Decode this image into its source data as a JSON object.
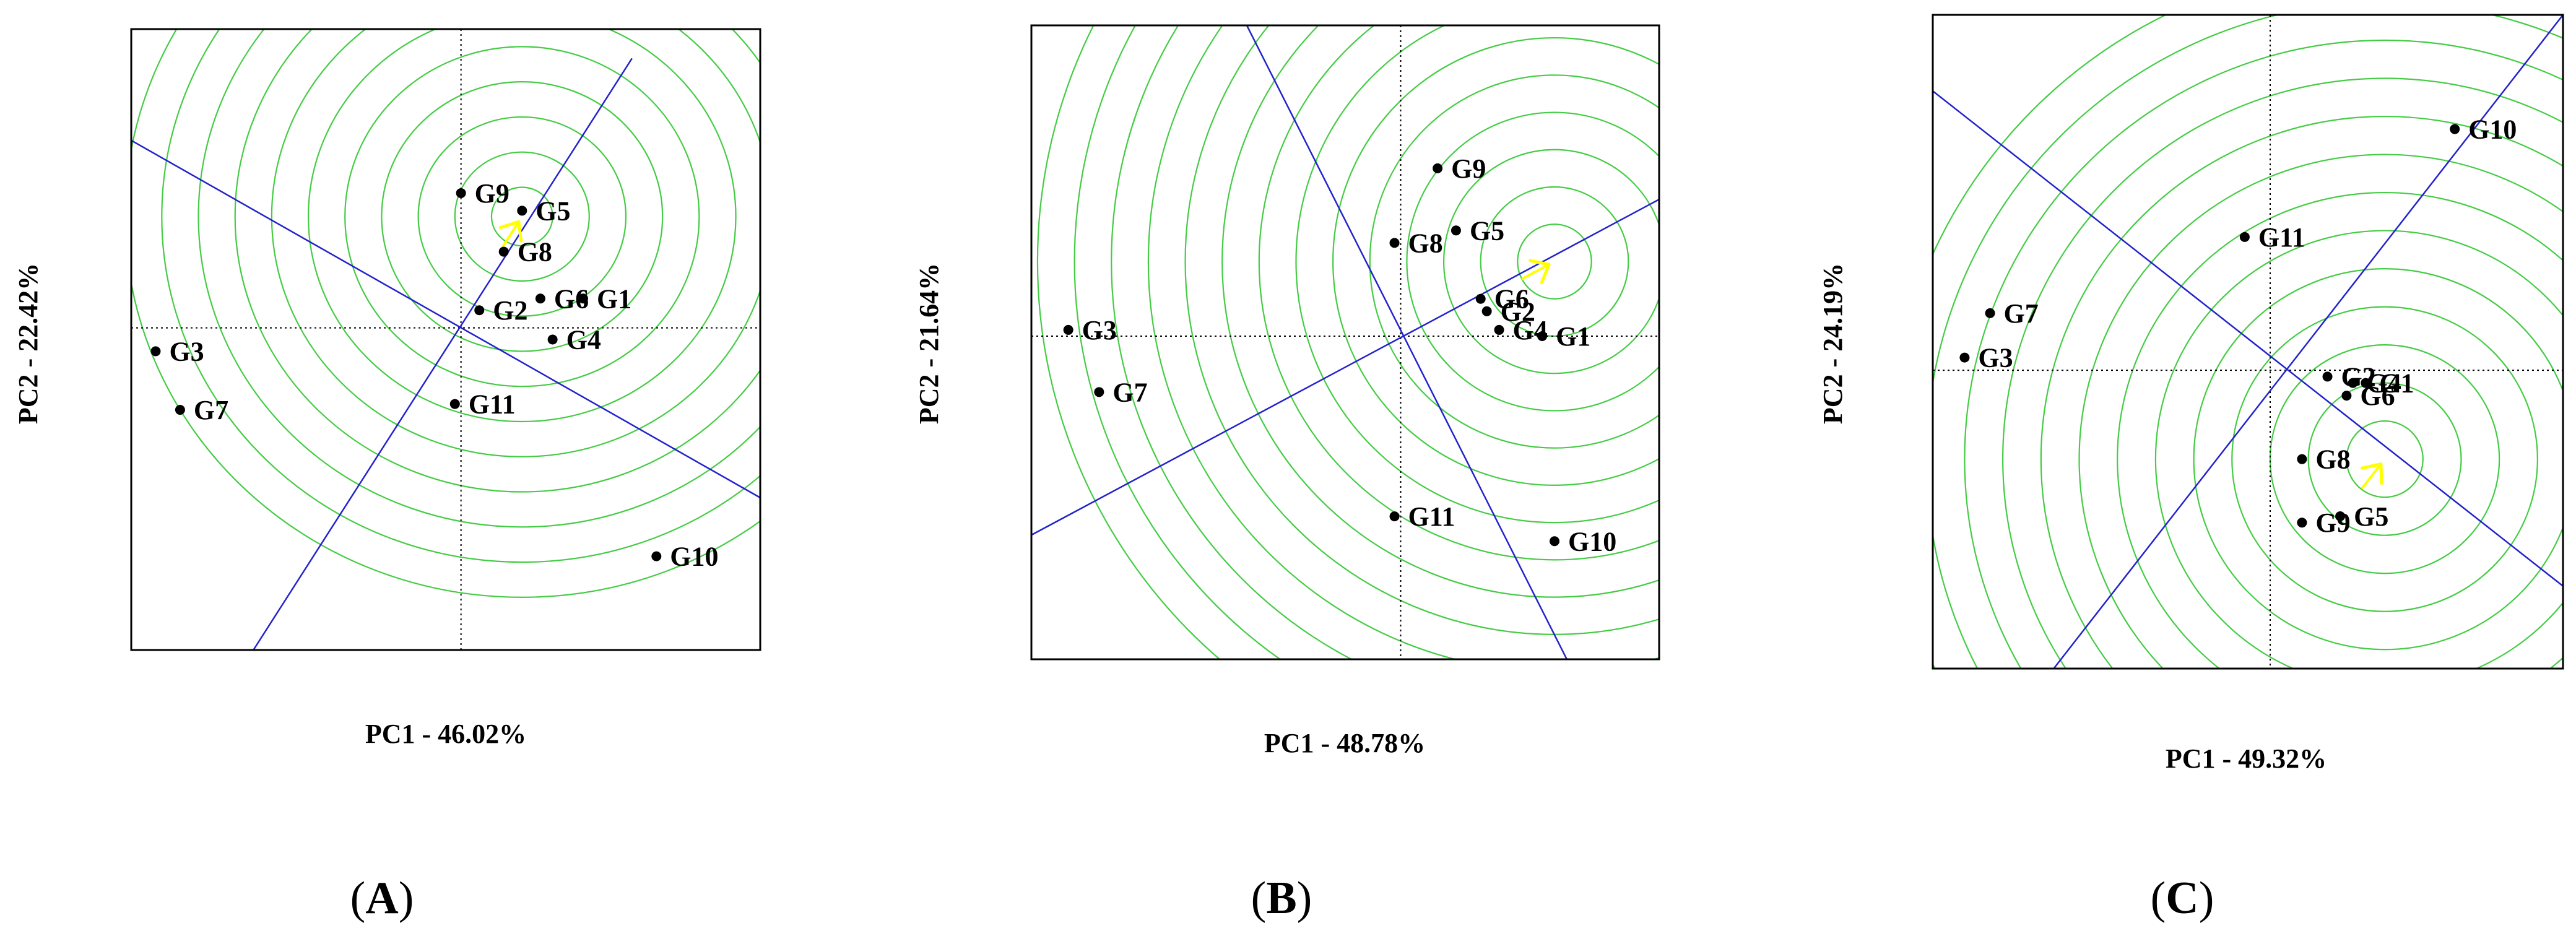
{
  "figure": {
    "panels": [
      {
        "id": "A",
        "label": "A",
        "xlabel": "PC1 - 46.02%",
        "ylabel": "PC2 - 22.42%"
      },
      {
        "id": "B",
        "label": "B",
        "xlabel": "PC1 - 48.78%",
        "ylabel": "PC2 - 21.64%"
      },
      {
        "id": "C",
        "label": "C",
        "xlabel": "PC1 - 49.32%",
        "ylabel": "PC2 - 24.19%"
      }
    ]
  },
  "colors": {
    "circles": "#44cc44",
    "axes_lines": "#2222cc",
    "arrow": "#ffff00",
    "points": "#000000",
    "frame": "#000000"
  },
  "chart_data": [
    {
      "type": "scatter",
      "title": "",
      "xlabel": "PC1 - 46.02%",
      "ylabel": "PC2 - 22.42%",
      "xlim": [
        -5.4,
        4.9
      ],
      "ylim": [
        -5.5,
        5.1
      ],
      "origin_lines": "dotted",
      "ideal_point": [
        1.0,
        1.9
      ],
      "circle_radii": [
        0.5,
        1.1,
        1.7,
        2.3,
        2.9,
        3.5,
        4.1,
        4.7,
        5.3,
        5.9,
        6.5
      ],
      "projection_line": {
        "p1": [
          -3.4,
          -5.5
        ],
        "p2": [
          2.8,
          4.6
        ]
      },
      "perpendicular_line": {
        "p1": [
          -5.4,
          3.2
        ],
        "p2": [
          4.9,
          -2.9
        ]
      },
      "points": [
        {
          "name": "G9",
          "x": 0.0,
          "y": 2.3
        },
        {
          "name": "G5",
          "x": 1.0,
          "y": 2.0
        },
        {
          "name": "G8",
          "x": 0.7,
          "y": 1.3
        },
        {
          "name": "G2",
          "x": 0.3,
          "y": 0.3
        },
        {
          "name": "G6",
          "x": 1.3,
          "y": 0.5
        },
        {
          "name": "G1",
          "x": 2.0,
          "y": 0.5
        },
        {
          "name": "G4",
          "x": 1.5,
          "y": -0.2
        },
        {
          "name": "G3",
          "x": -5.0,
          "y": -0.4
        },
        {
          "name": "G7",
          "x": -4.6,
          "y": -1.4
        },
        {
          "name": "G11",
          "x": -0.1,
          "y": -1.3
        },
        {
          "name": "G10",
          "x": 3.2,
          "y": -3.9
        }
      ],
      "label_names": [
        "G9",
        "G5",
        "G8",
        "G2",
        "G6",
        "G1",
        "G4",
        "G3",
        "G7",
        "G11",
        "G10"
      ]
    },
    {
      "type": "scatter",
      "title": "",
      "xlabel": "PC1 - 48.78%",
      "ylabel": "PC2 - 21.64%",
      "xlim": [
        -6.0,
        4.2
      ],
      "ylim": [
        -5.2,
        5.0
      ],
      "origin_lines": "dotted",
      "ideal_point": [
        2.5,
        1.2
      ],
      "circle_radii": [
        0.6,
        1.2,
        1.8,
        2.4,
        3.0,
        3.6,
        4.2,
        4.8,
        5.4,
        6.0,
        6.6,
        7.2,
        7.8,
        8.4
      ],
      "projection_line": {
        "p1": [
          -6.0,
          -3.2
        ],
        "p2": [
          4.2,
          2.2
        ]
      },
      "perpendicular_line": {
        "p1": [
          -2.5,
          5.0
        ],
        "p2": [
          2.7,
          -5.2
        ]
      },
      "points": [
        {
          "name": "G9",
          "x": 0.6,
          "y": 2.7
        },
        {
          "name": "G5",
          "x": 0.9,
          "y": 1.7
        },
        {
          "name": "G8",
          "x": -0.1,
          "y": 1.5
        },
        {
          "name": "G6",
          "x": 1.3,
          "y": 0.6
        },
        {
          "name": "G2",
          "x": 1.4,
          "y": 0.4
        },
        {
          "name": "G4",
          "x": 1.6,
          "y": 0.1
        },
        {
          "name": "G1",
          "x": 2.3,
          "y": 0.0
        },
        {
          "name": "G3",
          "x": -5.4,
          "y": 0.1
        },
        {
          "name": "G7",
          "x": -4.9,
          "y": -0.9
        },
        {
          "name": "G11",
          "x": -0.1,
          "y": -2.9
        },
        {
          "name": "G10",
          "x": 2.5,
          "y": -3.3
        }
      ],
      "label_names": [
        "G9",
        "G5",
        "G8",
        "G6",
        "G2",
        "G4",
        "G1",
        "G3",
        "G7",
        "G11",
        "G10"
      ]
    },
    {
      "type": "scatter",
      "title": "",
      "xlabel": "PC1 - 49.32%",
      "ylabel": "PC2 - 24.19%",
      "xlim": [
        -5.3,
        4.6
      ],
      "ylim": [
        -4.7,
        5.6
      ],
      "origin_lines": "dotted",
      "ideal_point": [
        1.8,
        -1.4
      ],
      "circle_radii": [
        0.6,
        1.2,
        1.8,
        2.4,
        3.0,
        3.6,
        4.2,
        4.8,
        5.4,
        6.0,
        6.6,
        7.2,
        7.8
      ],
      "projection_line": {
        "p1": [
          -3.4,
          -4.7
        ],
        "p2": [
          4.6,
          5.6
        ]
      },
      "perpendicular_line": {
        "p1": [
          -5.3,
          4.4
        ],
        "p2": [
          4.6,
          -3.4
        ]
      },
      "points": [
        {
          "name": "G10",
          "x": 2.9,
          "y": 3.8
        },
        {
          "name": "G11",
          "x": -0.4,
          "y": 2.1
        },
        {
          "name": "G7",
          "x": -4.4,
          "y": 0.9
        },
        {
          "name": "G3",
          "x": -4.8,
          "y": 0.2
        },
        {
          "name": "G2",
          "x": 0.9,
          "y": -0.1
        },
        {
          "name": "G1",
          "x": 1.5,
          "y": -0.2
        },
        {
          "name": "G4",
          "x": 1.3,
          "y": -0.2
        },
        {
          "name": "G6",
          "x": 1.2,
          "y": -0.4
        },
        {
          "name": "G8",
          "x": 0.5,
          "y": -1.4
        },
        {
          "name": "G5",
          "x": 1.1,
          "y": -2.3
        },
        {
          "name": "G9",
          "x": 0.5,
          "y": -2.4
        }
      ],
      "label_names": [
        "G10",
        "G11",
        "G7",
        "G3",
        "G2",
        "G1",
        "G4",
        "G6",
        "G8",
        "G5",
        "G9"
      ]
    }
  ]
}
